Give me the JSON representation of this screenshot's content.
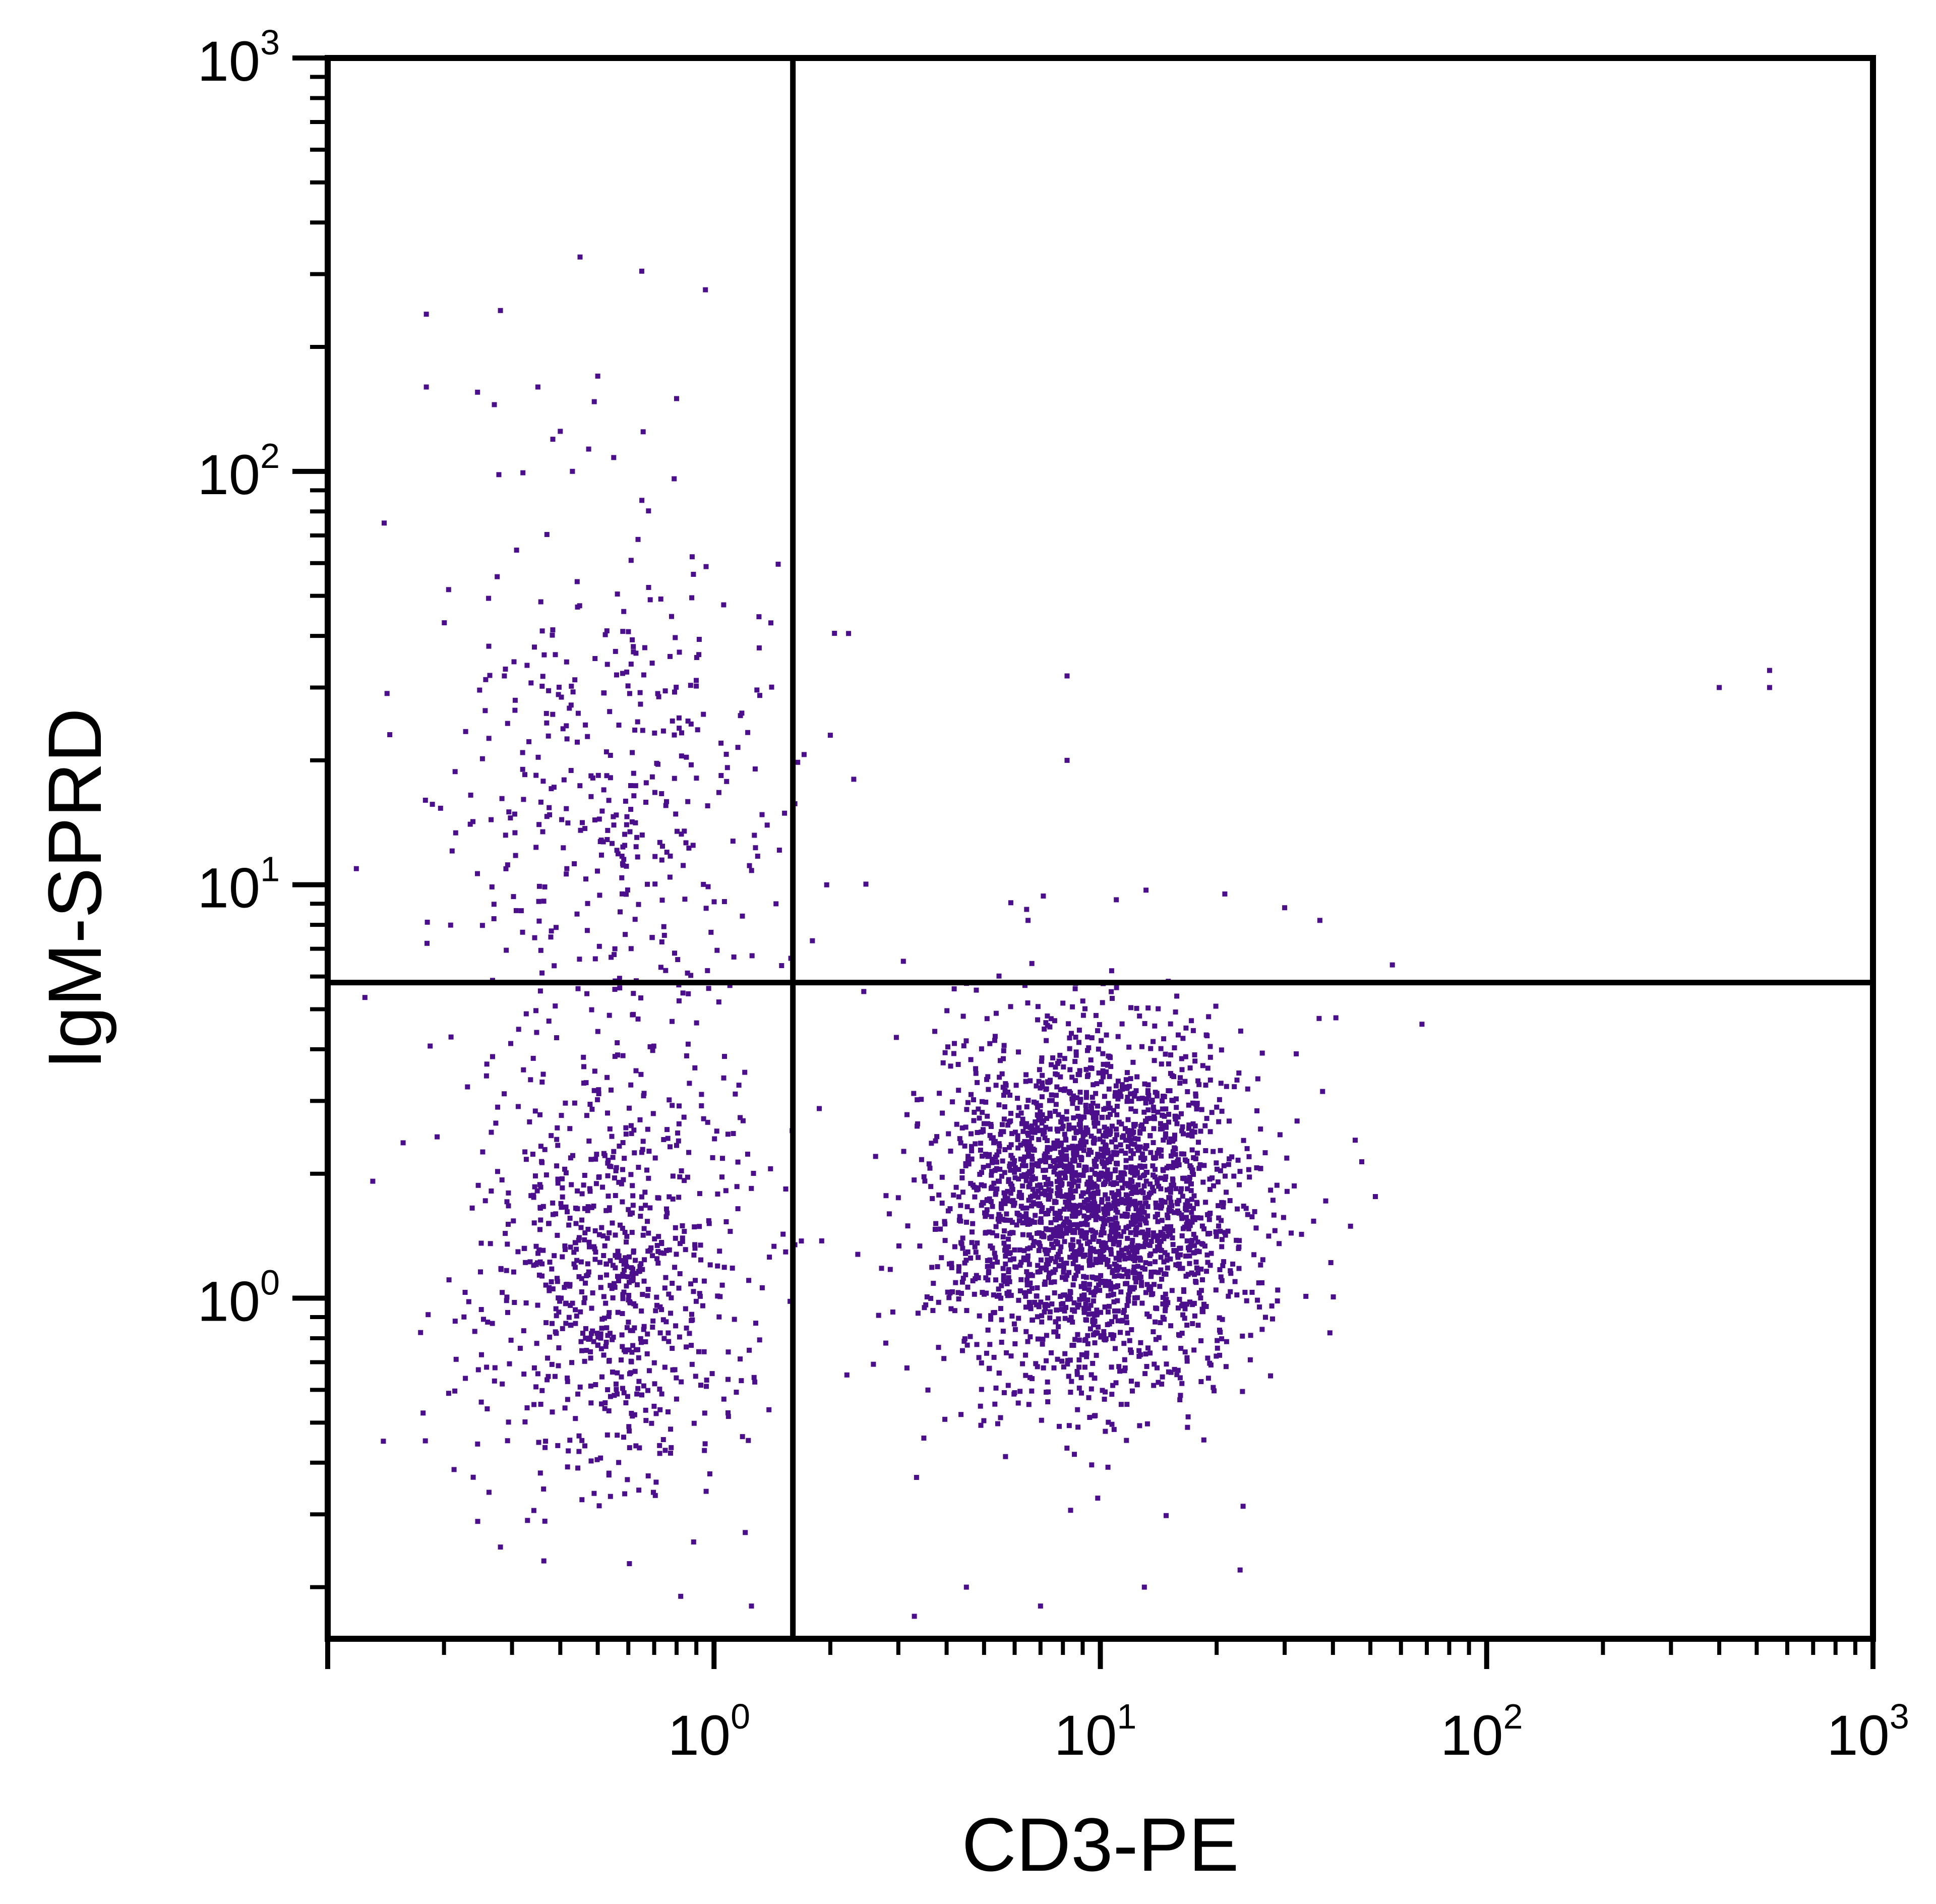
{
  "chart_data": {
    "type": "scatter",
    "title": "",
    "xlabel": "CD3-PE",
    "ylabel": "IgM-SPRD",
    "x_scale": "log",
    "y_scale": "log",
    "xlim": [
      0.1,
      1000
    ],
    "ylim": [
      0.15,
      1000
    ],
    "x_ticks": [
      {
        "value": 1,
        "base": "10",
        "exp": "0"
      },
      {
        "value": 10,
        "base": "10",
        "exp": "1"
      },
      {
        "value": 100,
        "base": "10",
        "exp": "2"
      },
      {
        "value": 1000,
        "base": "10",
        "exp": "3"
      }
    ],
    "y_ticks": [
      {
        "value": 1,
        "base": "10",
        "exp": "0"
      },
      {
        "value": 10,
        "base": "10",
        "exp": "1"
      },
      {
        "value": 100,
        "base": "10",
        "exp": "2"
      },
      {
        "value": 1000,
        "base": "10",
        "exp": "3"
      }
    ],
    "quadrant_gates": {
      "x": 1.6,
      "y": 5.8
    },
    "grid": false,
    "point_color": "#4b0f8c",
    "axis_color": "#000000",
    "populations": [
      {
        "quadrant": "upper-left",
        "x_center": 0.55,
        "y_center": 15,
        "x_spread_log": 0.22,
        "y_spread_log": 0.32,
        "count": 420
      },
      {
        "quadrant": "lower-left",
        "x_center": 0.55,
        "y_center": 1.15,
        "x_spread_log": 0.18,
        "y_spread_log": 0.26,
        "count": 800
      },
      {
        "quadrant": "lower-right",
        "x_center": 9.5,
        "y_center": 1.7,
        "x_spread_log": 0.2,
        "y_spread_log": 0.22,
        "count": 2600
      }
    ],
    "outliers": [
      {
        "x": 8.2,
        "y": 32
      },
      {
        "x": 8.2,
        "y": 20
      },
      {
        "x": 2.0,
        "y": 23
      },
      {
        "x": 2.3,
        "y": 18
      },
      {
        "x": 400,
        "y": 30
      },
      {
        "x": 540,
        "y": 33
      },
      {
        "x": 540,
        "y": 30
      },
      {
        "x": 11,
        "y": 9.2
      },
      {
        "x": 21,
        "y": 9.5
      },
      {
        "x": 30,
        "y": 8.8
      },
      {
        "x": 37,
        "y": 8.2
      },
      {
        "x": 57,
        "y": 6.4
      },
      {
        "x": 68,
        "y": 4.6
      },
      {
        "x": 6.5,
        "y": 8.2
      },
      {
        "x": 0.45,
        "y": 330
      },
      {
        "x": 0.65,
        "y": 305
      },
      {
        "x": 0.95,
        "y": 275
      },
      {
        "x": 0.18,
        "y": 240
      },
      {
        "x": 0.28,
        "y": 245
      },
      {
        "x": 0.1,
        "y": 200
      },
      {
        "x": 0.18,
        "y": 160
      },
      {
        "x": 0.35,
        "y": 160
      },
      {
        "x": 0.5,
        "y": 170
      },
      {
        "x": 0.8,
        "y": 150
      },
      {
        "x": 0.27,
        "y": 145
      },
      {
        "x": 0.4,
        "y": 125
      },
      {
        "x": 0.43,
        "y": 100
      },
      {
        "x": 0.55,
        "y": 108
      },
      {
        "x": 0.14,
        "y": 75
      },
      {
        "x": 3.3,
        "y": 0.17
      },
      {
        "x": 4.5,
        "y": 0.2
      },
      {
        "x": 7.0,
        "y": 0.18
      },
      {
        "x": 13,
        "y": 0.2
      },
      {
        "x": 23,
        "y": 0.22
      },
      {
        "x": 1.25,
        "y": 0.18
      },
      {
        "x": 0.82,
        "y": 0.19
      },
      {
        "x": 0.28,
        "y": 0.25
      }
    ]
  }
}
